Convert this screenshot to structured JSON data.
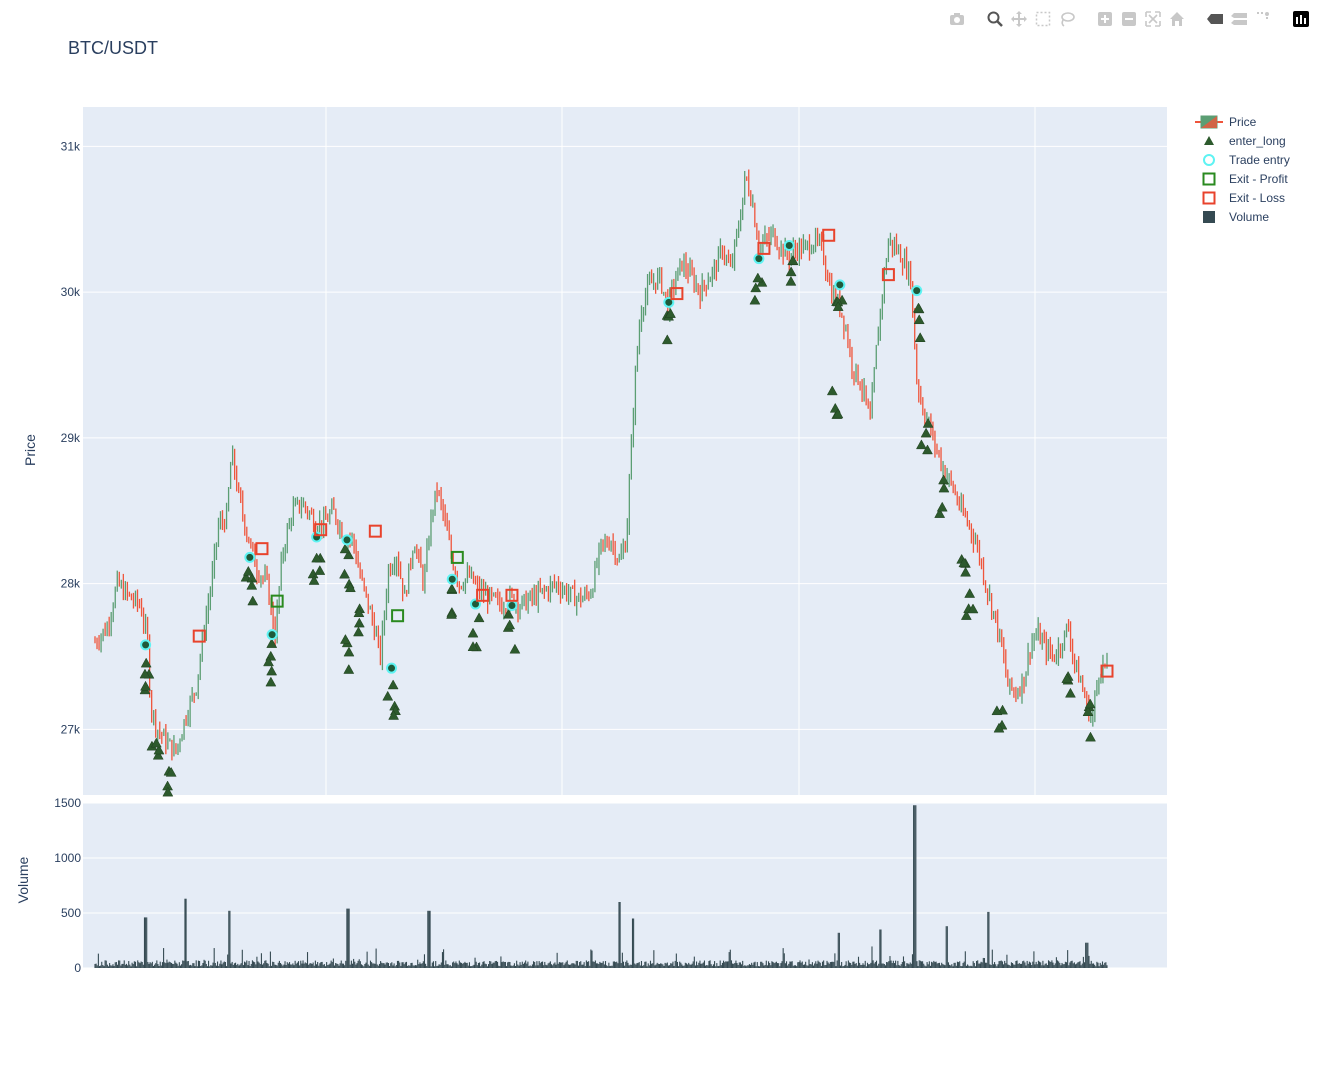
{
  "title": "BTC/USDT",
  "modebar": [
    "camera-icon",
    "zoom-icon",
    "pan-icon",
    "box-select-icon",
    "lasso-icon",
    "zoom-in-icon",
    "zoom-out-icon",
    "autoscale-icon",
    "reset-axes-icon",
    "spike-lines-icon",
    "compare-hover-icon",
    "closest-hover-icon",
    "plotly-logo-icon"
  ],
  "legend": {
    "items": [
      {
        "label": "Price",
        "symbol": "candlestick",
        "color": "#ef553b"
      },
      {
        "label": "enter_long",
        "symbol": "triangle-up",
        "color": "#2d5a2d"
      },
      {
        "label": "Trade entry",
        "symbol": "circle-open",
        "color": "#5ef3f3"
      },
      {
        "label": "Exit - Profit",
        "symbol": "square-open",
        "color": "#2a8a1f"
      },
      {
        "label": "Exit - Loss",
        "symbol": "square-open",
        "color": "#e8432c"
      },
      {
        "label": "Volume",
        "symbol": "square",
        "color": "#354a52"
      }
    ]
  },
  "colors": {
    "increasing": "#5b9e73",
    "decreasing": "#ef553b",
    "plot_bg": "#e5ecf6",
    "grid": "#ffffff",
    "volume": "#354a52"
  },
  "chart_data": [
    {
      "type": "candlestick",
      "name": "Price",
      "ylabel": "Price",
      "ylim": [
        26550,
        31270
      ],
      "yticks": [
        {
          "v": 27000,
          "label": "27k"
        },
        {
          "v": 28000,
          "label": "28k"
        },
        {
          "v": 29000,
          "label": "29k"
        },
        {
          "v": 30000,
          "label": "30k"
        },
        {
          "v": 31000,
          "label": "31k"
        }
      ],
      "xlim": [
        0,
        1000
      ],
      "price_path": [
        [
          0,
          27600
        ],
        [
          12,
          27700
        ],
        [
          22,
          28000
        ],
        [
          35,
          27900
        ],
        [
          45,
          27850
        ],
        [
          52,
          27600
        ],
        [
          55,
          27150
        ],
        [
          62,
          27000
        ],
        [
          72,
          26900
        ],
        [
          80,
          26850
        ],
        [
          90,
          27100
        ],
        [
          100,
          27300
        ],
        [
          108,
          27700
        ],
        [
          115,
          28000
        ],
        [
          122,
          28400
        ],
        [
          130,
          28450
        ],
        [
          135,
          28900
        ],
        [
          142,
          28600
        ],
        [
          150,
          28350
        ],
        [
          160,
          28100
        ],
        [
          170,
          28000
        ],
        [
          178,
          27650
        ],
        [
          185,
          28200
        ],
        [
          195,
          28500
        ],
        [
          205,
          28550
        ],
        [
          215,
          28450
        ],
        [
          225,
          28400
        ],
        [
          235,
          28500
        ],
        [
          245,
          28350
        ],
        [
          255,
          28300
        ],
        [
          262,
          28050
        ],
        [
          270,
          27850
        ],
        [
          276,
          27700
        ],
        [
          282,
          27500
        ],
        [
          290,
          28100
        ],
        [
          298,
          28200
        ],
        [
          306,
          27900
        ],
        [
          315,
          28300
        ],
        [
          325,
          28000
        ],
        [
          332,
          28450
        ],
        [
          338,
          28650
        ],
        [
          345,
          28450
        ],
        [
          352,
          28200
        ],
        [
          360,
          28000
        ],
        [
          370,
          28050
        ],
        [
          380,
          27950
        ],
        [
          390,
          27900
        ],
        [
          402,
          27850
        ],
        [
          410,
          27900
        ],
        [
          420,
          27850
        ],
        [
          432,
          27900
        ],
        [
          445,
          27950
        ],
        [
          455,
          28000
        ],
        [
          465,
          27950
        ],
        [
          475,
          27900
        ],
        [
          482,
          27900
        ],
        [
          490,
          27950
        ],
        [
          500,
          28250
        ],
        [
          510,
          28300
        ],
        [
          518,
          28150
        ],
        [
          525,
          28300
        ],
        [
          530,
          28950
        ],
        [
          535,
          29550
        ],
        [
          540,
          29900
        ],
        [
          548,
          30050
        ],
        [
          558,
          30100
        ],
        [
          566,
          29900
        ],
        [
          572,
          30050
        ],
        [
          580,
          30200
        ],
        [
          590,
          30100
        ],
        [
          598,
          30000
        ],
        [
          606,
          30100
        ],
        [
          612,
          30150
        ],
        [
          620,
          30300
        ],
        [
          628,
          30150
        ],
        [
          636,
          30450
        ],
        [
          643,
          30800
        ],
        [
          650,
          30600
        ],
        [
          656,
          30300
        ],
        [
          662,
          30350
        ],
        [
          670,
          30400
        ],
        [
          678,
          30300
        ],
        [
          686,
          30250
        ],
        [
          694,
          30300
        ],
        [
          702,
          30300
        ],
        [
          710,
          30350
        ],
        [
          718,
          30300
        ],
        [
          728,
          30000
        ],
        [
          736,
          29900
        ],
        [
          742,
          29750
        ],
        [
          748,
          29500
        ],
        [
          755,
          29400
        ],
        [
          760,
          29300
        ],
        [
          766,
          29100
        ],
        [
          772,
          29600
        ],
        [
          778,
          30000
        ],
        [
          784,
          30350
        ],
        [
          792,
          30300
        ],
        [
          800,
          30200
        ],
        [
          806,
          30100
        ],
        [
          812,
          29400
        ],
        [
          818,
          29200
        ],
        [
          824,
          29100
        ],
        [
          830,
          28950
        ],
        [
          838,
          28800
        ],
        [
          848,
          28650
        ],
        [
          856,
          28500
        ],
        [
          864,
          28400
        ],
        [
          872,
          28250
        ],
        [
          880,
          28000
        ],
        [
          888,
          27800
        ],
        [
          895,
          27600
        ],
        [
          902,
          27300
        ],
        [
          910,
          27250
        ],
        [
          918,
          27350
        ],
        [
          925,
          27600
        ],
        [
          932,
          27650
        ],
        [
          940,
          27550
        ],
        [
          948,
          27500
        ],
        [
          955,
          27600
        ],
        [
          962,
          27700
        ],
        [
          968,
          27450
        ],
        [
          975,
          27300
        ],
        [
          985,
          27050
        ],
        [
          992,
          27400
        ],
        [
          1000,
          27450
        ]
      ],
      "enter_long_count": 110,
      "trade_entries": [
        [
          50,
          27580
        ],
        [
          153,
          28180
        ],
        [
          175,
          27650
        ],
        [
          219,
          28320
        ],
        [
          249,
          28300
        ],
        [
          293,
          27420
        ],
        [
          353,
          28030
        ],
        [
          376,
          27860
        ],
        [
          412,
          27850
        ],
        [
          567,
          29930
        ],
        [
          656,
          30230
        ],
        [
          686,
          30320
        ],
        [
          736,
          30050
        ],
        [
          812,
          30010
        ]
      ],
      "exit_profit": [
        [
          180,
          27880
        ],
        [
          299,
          27780
        ],
        [
          358,
          28180
        ]
      ],
      "exit_loss": [
        [
          103,
          27640
        ],
        [
          165,
          28240
        ],
        [
          223,
          28370
        ],
        [
          277,
          28360
        ],
        [
          383,
          27920
        ],
        [
          412,
          27920
        ],
        [
          575,
          29990
        ],
        [
          661,
          30300
        ],
        [
          725,
          30390
        ],
        [
          784,
          30120
        ],
        [
          1000,
          27400
        ]
      ]
    },
    {
      "type": "bar",
      "name": "Volume",
      "ylabel": "Volume",
      "ylim": [
        0,
        1500
      ],
      "yticks": [
        {
          "v": 0,
          "label": "0"
        },
        {
          "v": 500,
          "label": "500"
        },
        {
          "v": 1000,
          "label": "1000"
        },
        {
          "v": 1500,
          "label": "1500"
        }
      ],
      "spikes": [
        [
          50,
          460
        ],
        [
          89,
          630
        ],
        [
          133,
          520
        ],
        [
          250,
          540
        ],
        [
          330,
          520
        ],
        [
          518,
          600
        ],
        [
          532,
          450
        ],
        [
          735,
          320
        ],
        [
          776,
          350
        ],
        [
          810,
          1480
        ],
        [
          842,
          380
        ],
        [
          883,
          510
        ],
        [
          980,
          230
        ]
      ]
    }
  ]
}
